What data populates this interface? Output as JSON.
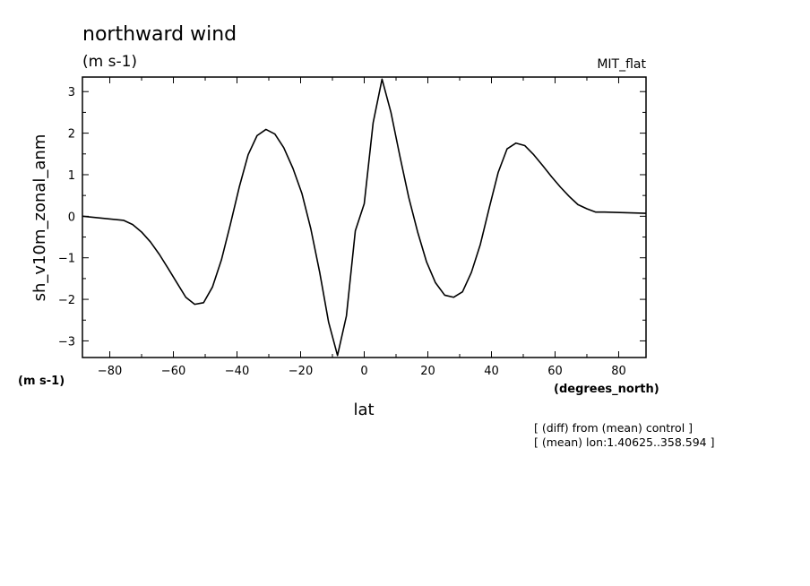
{
  "chart_data": {
    "type": "line",
    "title": "northward wind",
    "units": "(m s-1)",
    "model": "MIT_flat",
    "ylabel": "sh_v10m_zonal_anm",
    "yunits": "(m s-1)",
    "xlabel": "lat",
    "xunits": "(degrees_north)",
    "notes": [
      "[ (diff) from (mean) control ]",
      "[ (mean) lon:1.40625..358.594 ]"
    ],
    "xlim": [
      -88.6,
      88.6
    ],
    "ylim": [
      -3.4,
      3.35
    ],
    "xticks": [
      -80,
      -60,
      -40,
      -20,
      0,
      20,
      40,
      60,
      80
    ],
    "yticks": [
      -3,
      -2,
      -1,
      0,
      1,
      2,
      3
    ],
    "grid": false,
    "x": [
      -88.6,
      -75.6,
      -72.8,
      -70.0,
      -67.2,
      -64.4,
      -61.7,
      -58.9,
      -56.1,
      -53.3,
      -50.5,
      -47.7,
      -44.9,
      -42.1,
      -39.3,
      -36.5,
      -33.7,
      -30.9,
      -28.1,
      -25.3,
      -22.4,
      -19.6,
      -16.8,
      -14.0,
      -11.2,
      -8.4,
      -5.6,
      -2.8,
      0.0,
      2.8,
      5.6,
      8.4,
      11.2,
      14.0,
      16.8,
      19.6,
      22.4,
      25.3,
      28.1,
      30.9,
      33.7,
      36.5,
      39.3,
      42.1,
      44.9,
      47.7,
      50.5,
      53.3,
      56.1,
      58.9,
      61.7,
      64.4,
      67.2,
      70.0,
      72.8,
      75.6,
      88.6
    ],
    "values": [
      0.0,
      -0.1,
      -0.2,
      -0.38,
      -0.62,
      -0.92,
      -1.25,
      -1.6,
      -1.95,
      -2.12,
      -2.08,
      -1.7,
      -1.05,
      -0.2,
      0.7,
      1.48,
      1.94,
      2.09,
      1.98,
      1.65,
      1.15,
      0.55,
      -0.3,
      -1.35,
      -2.55,
      -3.35,
      -2.4,
      -0.35,
      0.3,
      2.25,
      3.3,
      2.5,
      1.45,
      0.45,
      -0.38,
      -1.1,
      -1.6,
      -1.9,
      -1.95,
      -1.82,
      -1.35,
      -0.68,
      0.2,
      1.05,
      1.62,
      1.76,
      1.7,
      1.48,
      1.22,
      0.95,
      0.7,
      0.48,
      0.28,
      0.18,
      0.1,
      0.1,
      0.07
    ]
  }
}
